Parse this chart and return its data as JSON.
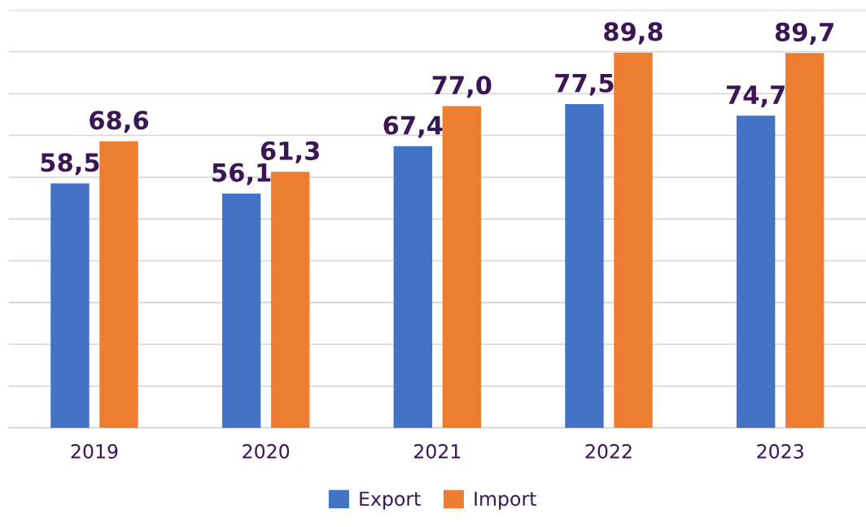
{
  "chart_data": {
    "type": "bar",
    "categories": [
      "2019",
      "2020",
      "2021",
      "2022",
      "2023"
    ],
    "series": [
      {
        "name": "Export",
        "color": "#4472c4",
        "values": [
          58.5,
          56.1,
          67.4,
          77.5,
          74.7
        ],
        "value_labels": [
          "58,5",
          "56,1",
          "67,4",
          "77,5",
          "74,7"
        ]
      },
      {
        "name": "Import",
        "color": "#ed7d31",
        "values": [
          68.6,
          61.3,
          77.0,
          89.8,
          89.7
        ],
        "value_labels": [
          "68,6",
          "61,3",
          "77,0",
          "89,8",
          "89,7"
        ]
      }
    ],
    "ylim": [
      0,
      100
    ],
    "yticks": [
      {
        "value": 0,
        "label": null
      },
      {
        "value": 10,
        "label": null
      },
      {
        "value": 20,
        "label": null
      },
      {
        "value": 30,
        "label": null
      },
      {
        "value": 40,
        "label": null
      },
      {
        "value": 50,
        "label": null
      },
      {
        "value": 60,
        "label": null
      },
      {
        "value": 70,
        "label": null
      },
      {
        "value": 80,
        "label": null
      },
      {
        "value": 90,
        "label": null
      },
      {
        "value": 100,
        "label": null
      }
    ],
    "grid": "y",
    "legend": "bottom",
    "tick_labels": "x"
  }
}
